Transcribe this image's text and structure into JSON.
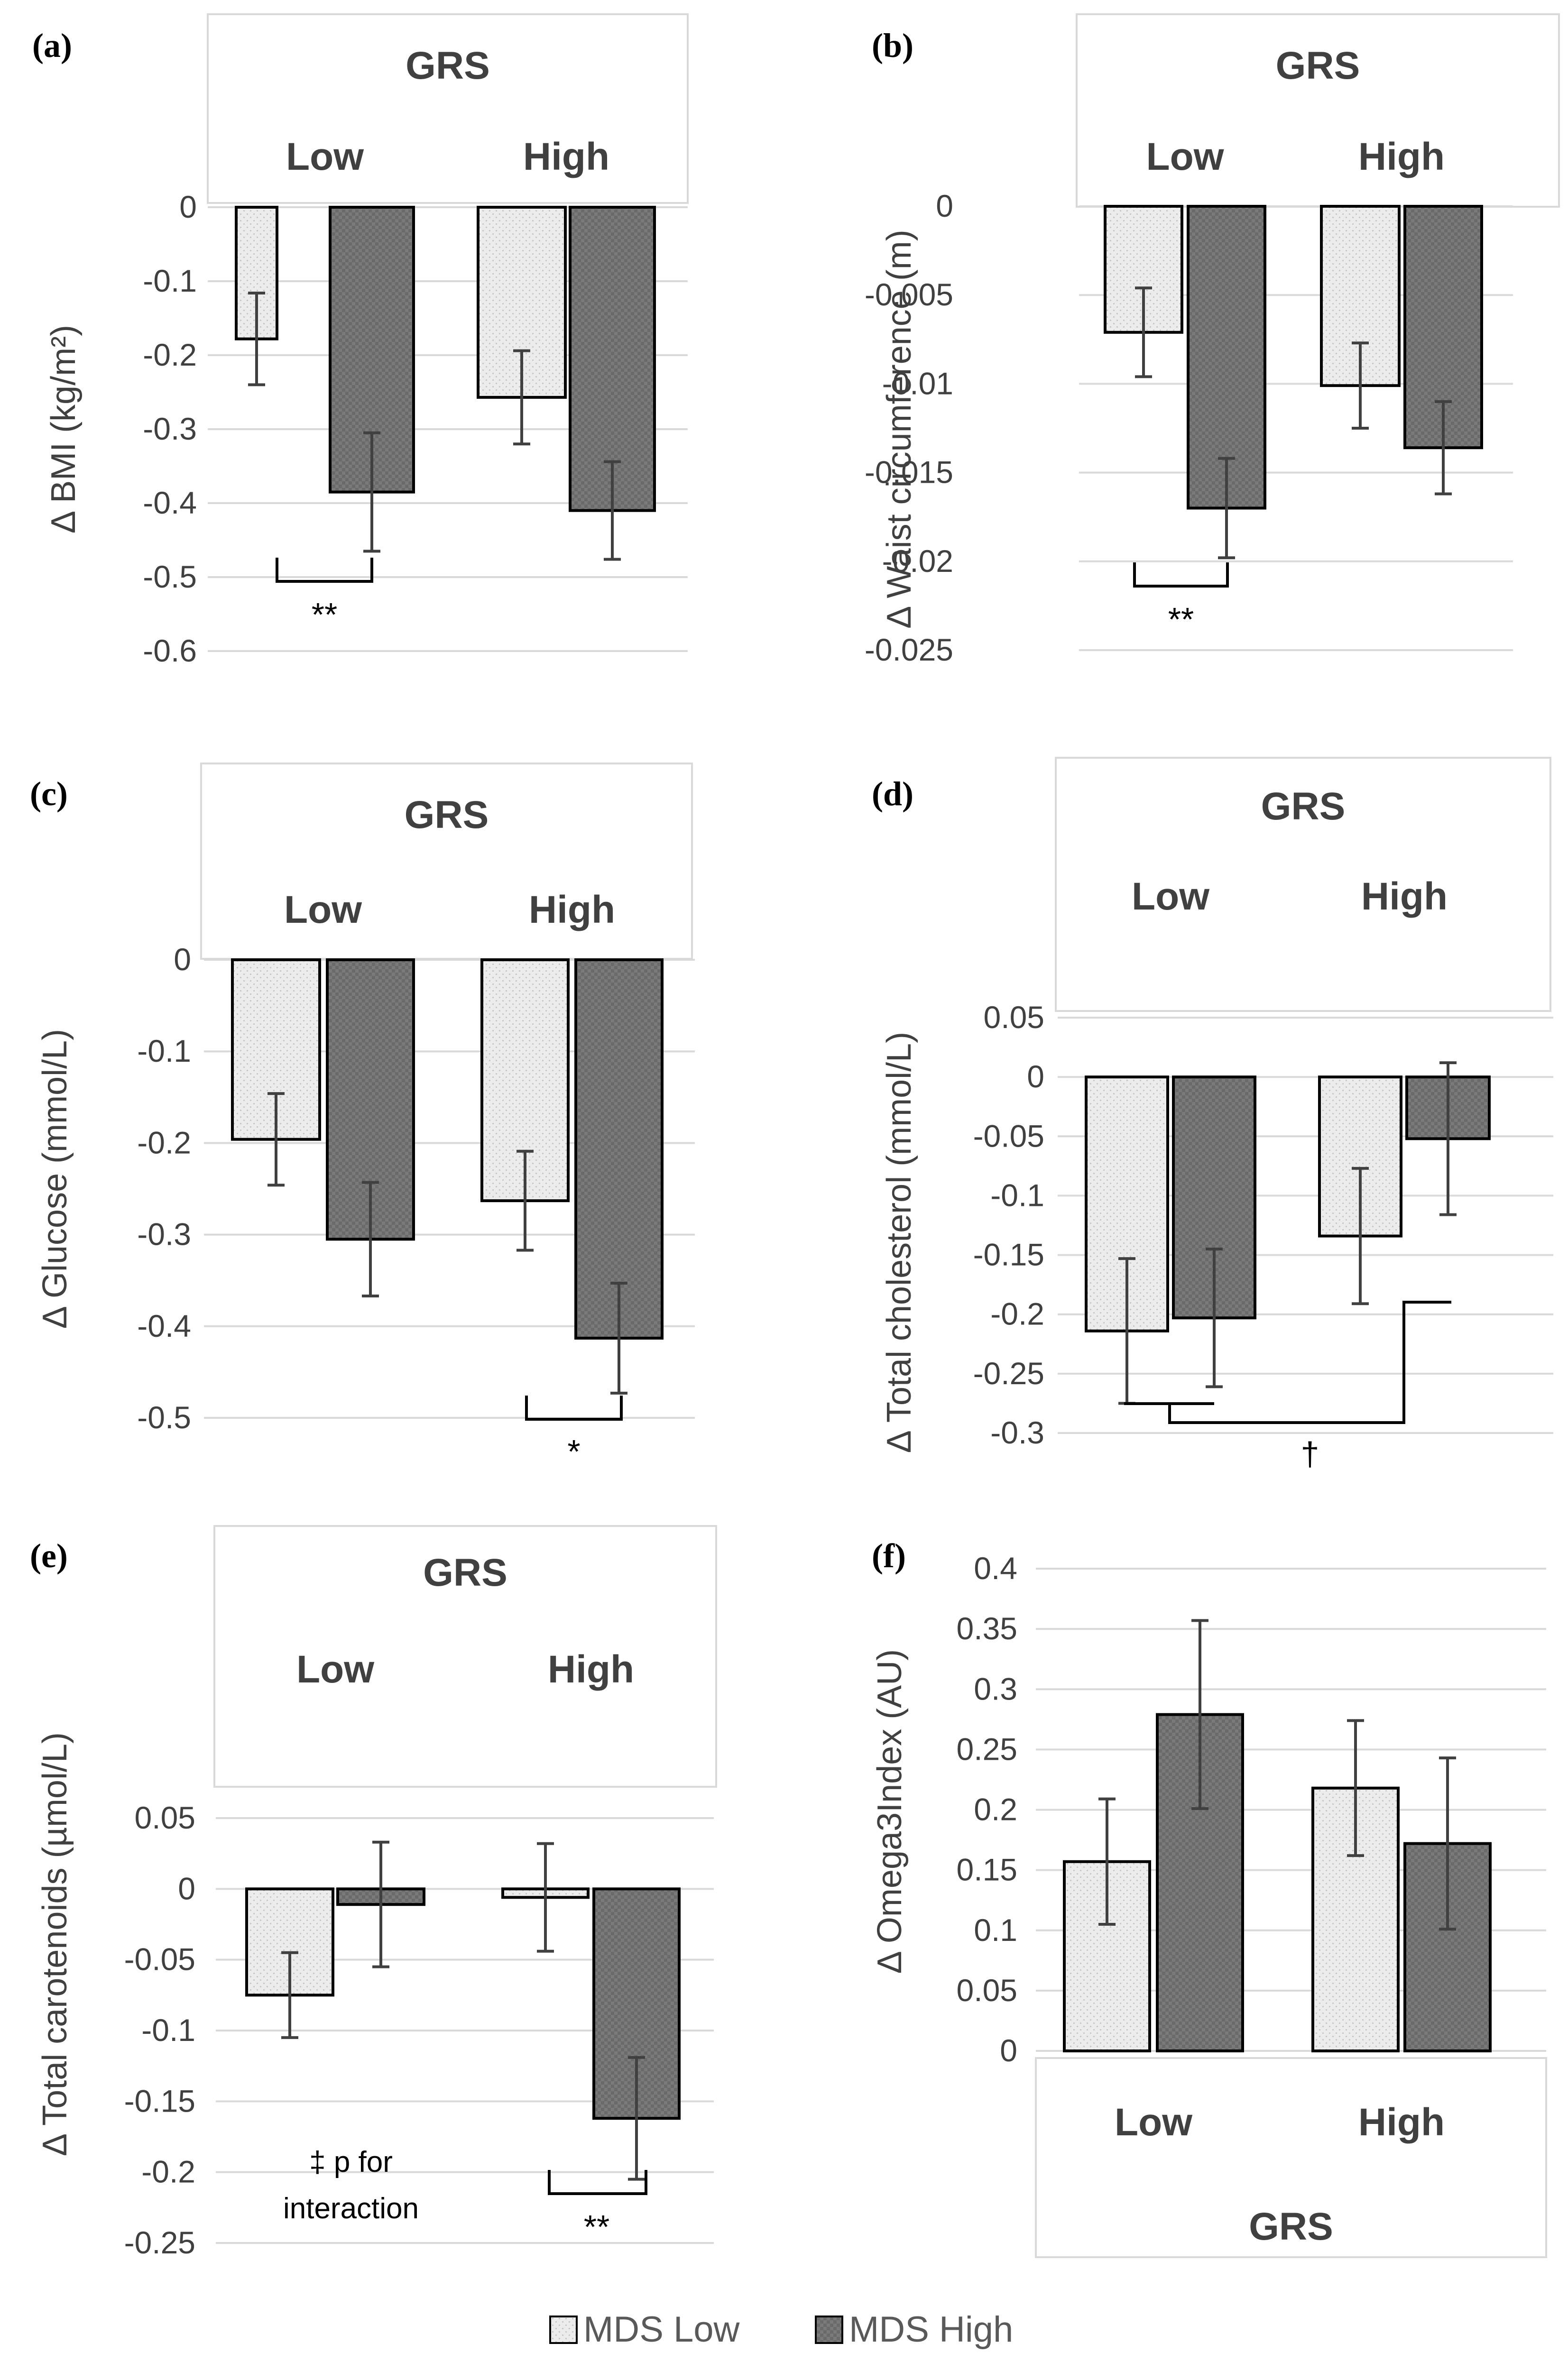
{
  "legend": [
    {
      "label": "MDS Low",
      "pattern": "light-dotted"
    },
    {
      "label": "MDS High",
      "pattern": "dark-checkered"
    }
  ],
  "colors": {
    "mds_low_fill": "#e8e8e8",
    "mds_high_fill": "#747474",
    "axis_text": "#404040",
    "gridline": "#d9d9d9",
    "bar_border": "#000000",
    "error_bar": "#404040"
  },
  "chart_data": [
    {
      "panel": "(a)",
      "type": "bar",
      "ylabel": "Δ BMI (kg/m²)",
      "header_title": "GRS",
      "header_position": "top",
      "categories": [
        "Low",
        "High"
      ],
      "yticks": [
        "0",
        "-0.1",
        "-0.2",
        "-0.3",
        "-0.4",
        "-0.5",
        "-0.6"
      ],
      "ylim": [
        -0.6,
        0
      ],
      "series": [
        {
          "name": "MDS Low",
          "values": [
            -0.178,
            -0.257
          ],
          "errors": [
            0.062,
            0.063
          ]
        },
        {
          "name": "MDS High",
          "values": [
            -0.385,
            -0.41
          ],
          "errors": [
            0.08,
            0.066
          ]
        }
      ],
      "significance": [
        {
          "label": "**",
          "group": "Low",
          "type": "within-group"
        }
      ]
    },
    {
      "panel": "(b)",
      "type": "bar",
      "ylabel": "Δ Waist circumference (m)",
      "header_title": "GRS",
      "header_position": "top",
      "categories": [
        "Low",
        "High"
      ],
      "yticks": [
        "0",
        "-0.005",
        "-0.01",
        "-0.015",
        "-0.02",
        "-0.025"
      ],
      "ylim": [
        -0.025,
        0
      ],
      "series": [
        {
          "name": "MDS Low",
          "values": [
            -0.0071,
            -0.0101
          ],
          "errors": [
            0.0025,
            0.0024
          ]
        },
        {
          "name": "MDS High",
          "values": [
            -0.017,
            -0.0136
          ],
          "errors": [
            0.0028,
            0.0026
          ]
        }
      ],
      "significance": [
        {
          "label": "**",
          "group": "Low",
          "type": "within-group"
        }
      ]
    },
    {
      "panel": "(c)",
      "type": "bar",
      "ylabel": "Δ Glucose (mmol/L)",
      "header_title": "GRS",
      "header_position": "top",
      "categories": [
        "Low",
        "High"
      ],
      "yticks": [
        "0",
        "-0.1",
        "-0.2",
        "-0.3",
        "-0.4",
        "-0.5"
      ],
      "ylim": [
        -0.5,
        0
      ],
      "series": [
        {
          "name": "MDS Low",
          "values": [
            -0.196,
            -0.263
          ],
          "errors": [
            0.05,
            0.054
          ]
        },
        {
          "name": "MDS High",
          "values": [
            -0.305,
            -0.413
          ],
          "errors": [
            0.062,
            0.06
          ]
        }
      ],
      "significance": [
        {
          "label": "*",
          "group": "High",
          "type": "within-group"
        }
      ]
    },
    {
      "panel": "(d)",
      "type": "bar",
      "ylabel": "Δ Total cholesterol (mmol/L)",
      "header_title": "GRS",
      "header_position": "top",
      "categories": [
        "Low",
        "High"
      ],
      "yticks": [
        "0.05",
        "0",
        "-0.05",
        "-0.1",
        "-0.15",
        "-0.2",
        "-0.25",
        "-0.3"
      ],
      "ylim": [
        -0.3,
        0.05
      ],
      "series": [
        {
          "name": "MDS Low",
          "values": [
            -0.214,
            -0.134
          ],
          "errors": [
            0.061,
            0.057
          ]
        },
        {
          "name": "MDS High",
          "values": [
            -0.203,
            -0.052
          ],
          "errors": [
            0.058,
            0.064
          ]
        }
      ],
      "significance": [
        {
          "label": "†",
          "group": "Low vs High",
          "type": "between-group"
        }
      ]
    },
    {
      "panel": "(e)",
      "type": "bar",
      "ylabel": "Δ Total carotenoids (µmol/L)",
      "header_title": "GRS",
      "header_position": "top",
      "categories": [
        "Low",
        "High"
      ],
      "yticks": [
        "0.05",
        "0",
        "-0.05",
        "-0.1",
        "-0.15",
        "-0.2",
        "-0.25"
      ],
      "ylim": [
        -0.25,
        0.05
      ],
      "series": [
        {
          "name": "MDS Low",
          "values": [
            -0.075,
            -0.006
          ],
          "errors": [
            0.03,
            0.038
          ]
        },
        {
          "name": "MDS High",
          "values": [
            -0.011,
            -0.162
          ],
          "errors": [
            0.044,
            0.043
          ]
        }
      ],
      "significance": [
        {
          "label": "**",
          "group": "High",
          "type": "within-group"
        }
      ],
      "note": [
        "‡ p for",
        "interaction"
      ]
    },
    {
      "panel": "(f)",
      "type": "bar",
      "ylabel": "Δ Omega3Index (AU)",
      "header_title": "GRS",
      "header_position": "bottom",
      "categories": [
        "Low",
        "High"
      ],
      "yticks": [
        "0.4",
        "0.35",
        "0.3",
        "0.25",
        "0.2",
        "0.15",
        "0.1",
        "0.05",
        "0"
      ],
      "ylim": [
        0,
        0.4
      ],
      "series": [
        {
          "name": "MDS Low",
          "values": [
            0.157,
            0.218
          ],
          "errors": [
            0.052,
            0.056
          ]
        },
        {
          "name": "MDS High",
          "values": [
            0.279,
            0.172
          ],
          "errors": [
            0.078,
            0.071
          ]
        }
      ],
      "significance": []
    }
  ]
}
